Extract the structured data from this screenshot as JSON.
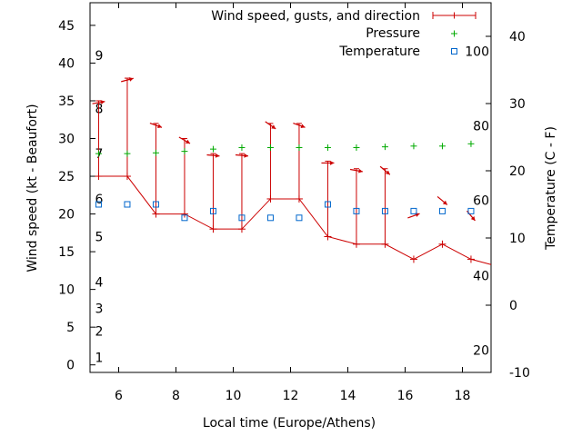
{
  "chart_data": {
    "type": "line",
    "xlabel": "Local time (Europe/Athens)",
    "ylabel": "Wind speed (kt - Beaufort)",
    "y2label": "Temperature (C - F)",
    "xlim": [
      5.0,
      19.0
    ],
    "ylim": [
      -1,
      48
    ],
    "y2lim": [
      -10,
      45
    ],
    "x_ticks": [
      "6",
      "8",
      "10",
      "12",
      "14",
      "16",
      "18"
    ],
    "y_ticks": [
      "0",
      "5",
      "10",
      "15",
      "20",
      "25",
      "30",
      "35",
      "40",
      "45"
    ],
    "y2_ticks": [
      "-10",
      "0",
      "10",
      "20",
      "30",
      "40"
    ],
    "beaufort_labels": [
      {
        "label": "1",
        "kt": 1
      },
      {
        "label": "2",
        "kt": 4.5
      },
      {
        "label": "3",
        "kt": 7.5
      },
      {
        "label": "4",
        "kt": 11
      },
      {
        "label": "5",
        "kt": 17
      },
      {
        "label": "6",
        "kt": 22
      },
      {
        "label": "7",
        "kt": 28
      },
      {
        "label": "8",
        "kt": 34
      },
      {
        "label": "9",
        "kt": 41
      }
    ],
    "fahrenheit_labels": [
      {
        "label": "20",
        "c": -6.7
      },
      {
        "label": "40",
        "c": 4.4
      },
      {
        "label": "60",
        "c": 15.6
      },
      {
        "label": "80",
        "c": 26.7
      },
      {
        "label": "100",
        "c": 37.8
      }
    ],
    "legend": {
      "position": "top-right",
      "entries": [
        "Wind speed, gusts, and direction",
        "Pressure",
        "Temperature"
      ]
    },
    "colors": {
      "wind": "#cc0000",
      "pressure": "#00aa00",
      "temperature": "#0066cc"
    },
    "series": [
      {
        "name": "Wind speed, gusts, and direction",
        "x": [
          5.3,
          6.3,
          7.3,
          8.3,
          9.3,
          10.3,
          11.3,
          12.3,
          13.3,
          14.3,
          15.3,
          16.3,
          17.3,
          18.3,
          19.0
        ],
        "values": [
          25,
          25,
          20,
          20,
          18,
          18,
          22,
          22,
          17,
          16,
          16,
          14,
          16,
          14,
          13.3
        ],
        "gusts": [
          35,
          38,
          32,
          30,
          28,
          28,
          32,
          32,
          27,
          26,
          26,
          null,
          null,
          null,
          null
        ],
        "direction_deg": [
          80,
          75,
          110,
          120,
          95,
          95,
          125,
          110,
          90,
          100,
          130,
          70,
          130,
          140,
          null
        ]
      },
      {
        "name": "Pressure",
        "x": [
          5.3,
          6.3,
          7.3,
          8.3,
          9.3,
          10.3,
          11.3,
          12.3,
          13.3,
          14.3,
          15.3,
          16.3,
          17.3,
          18.3
        ],
        "values": [
          28,
          28,
          28.1,
          28.3,
          28.6,
          28.8,
          28.8,
          28.8,
          28.8,
          28.8,
          28.9,
          29,
          29,
          29.3
        ]
      },
      {
        "name": "Temperature",
        "x": [
          5.3,
          6.3,
          7.3,
          8.3,
          9.3,
          10.3,
          11.3,
          12.3,
          13.3,
          14.3,
          15.3,
          16.3,
          17.3,
          18.3
        ],
        "values": [
          15,
          15,
          15,
          13,
          14,
          13,
          13,
          13,
          15,
          14,
          14,
          14,
          14,
          14
        ]
      }
    ]
  }
}
